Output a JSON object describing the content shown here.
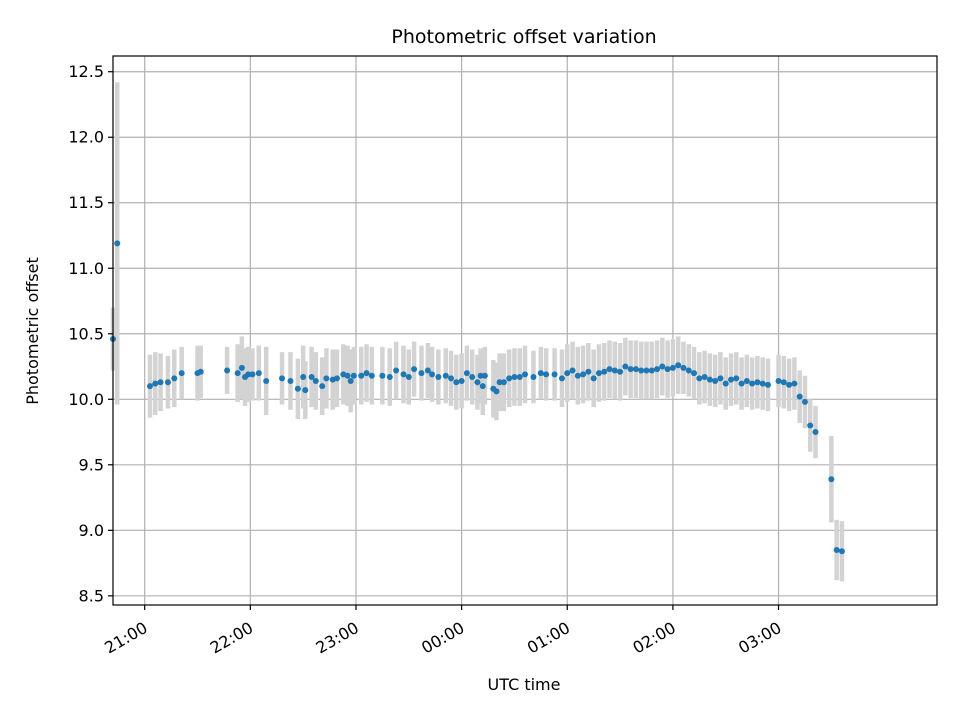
{
  "chart_data": {
    "type": "scatter",
    "title": "Photometric offset variation",
    "xlabel": "UTC time",
    "ylabel": "Photometric offset",
    "x_unit": "hours (UTC, 21:00 = 21.0, after midnight continues as 24+)",
    "xlim": [
      20.7,
      28.5
    ],
    "ylim": [
      8.43,
      12.62
    ],
    "grid": true,
    "colors": {
      "points": "#1f77b4",
      "errorbars": "#d3d3d3",
      "grid": "#b0b0b0"
    },
    "xticks": [
      {
        "value": 21,
        "label": "21:00"
      },
      {
        "value": 22,
        "label": "22:00"
      },
      {
        "value": 23,
        "label": "23:00"
      },
      {
        "value": 24,
        "label": "00:00"
      },
      {
        "value": 25,
        "label": "01:00"
      },
      {
        "value": 26,
        "label": "02:00"
      },
      {
        "value": 27,
        "label": "03:00"
      }
    ],
    "yticks": [
      {
        "value": 8.5,
        "label": "8.5"
      },
      {
        "value": 9.0,
        "label": "9.0"
      },
      {
        "value": 9.5,
        "label": "9.5"
      },
      {
        "value": 10.0,
        "label": "10.0"
      },
      {
        "value": 10.5,
        "label": "10.5"
      },
      {
        "value": 11.0,
        "label": "11.0"
      },
      {
        "value": 11.5,
        "label": "11.5"
      },
      {
        "value": 12.0,
        "label": "12.0"
      },
      {
        "value": 12.5,
        "label": "12.5"
      }
    ],
    "points": [
      [
        20.7,
        10.46,
        0.24
      ],
      [
        20.74,
        11.19,
        1.23
      ],
      [
        21.05,
        10.1,
        0.24
      ],
      [
        21.1,
        10.12,
        0.24
      ],
      [
        21.15,
        10.13,
        0.22
      ],
      [
        21.22,
        10.13,
        0.2
      ],
      [
        21.28,
        10.16,
        0.22
      ],
      [
        21.35,
        10.2,
        0.2
      ],
      [
        21.5,
        10.2,
        0.21
      ],
      [
        21.53,
        10.21,
        0.2
      ],
      [
        21.78,
        10.22,
        0.18
      ],
      [
        21.88,
        10.2,
        0.22
      ],
      [
        21.92,
        10.24,
        0.24
      ],
      [
        21.95,
        10.17,
        0.22
      ],
      [
        21.98,
        10.19,
        0.21
      ],
      [
        22.02,
        10.19,
        0.2
      ],
      [
        22.08,
        10.2,
        0.21
      ],
      [
        22.15,
        10.14,
        0.26
      ],
      [
        22.3,
        10.16,
        0.2
      ],
      [
        22.38,
        10.14,
        0.22
      ],
      [
        22.45,
        10.08,
        0.23
      ],
      [
        22.5,
        10.17,
        0.24
      ],
      [
        22.52,
        10.07,
        0.22
      ],
      [
        22.58,
        10.17,
        0.23
      ],
      [
        22.62,
        10.14,
        0.22
      ],
      [
        22.68,
        10.1,
        0.22
      ],
      [
        22.72,
        10.16,
        0.23
      ],
      [
        22.78,
        10.15,
        0.23
      ],
      [
        22.82,
        10.16,
        0.22
      ],
      [
        22.88,
        10.19,
        0.23
      ],
      [
        22.92,
        10.18,
        0.23
      ],
      [
        22.95,
        10.14,
        0.24
      ],
      [
        22.98,
        10.18,
        0.22
      ],
      [
        23.05,
        10.18,
        0.22
      ],
      [
        23.1,
        10.2,
        0.22
      ],
      [
        23.15,
        10.18,
        0.22
      ],
      [
        23.25,
        10.18,
        0.22
      ],
      [
        23.32,
        10.17,
        0.22
      ],
      [
        23.38,
        10.22,
        0.22
      ],
      [
        23.45,
        10.19,
        0.22
      ],
      [
        23.5,
        10.17,
        0.21
      ],
      [
        23.55,
        10.23,
        0.21
      ],
      [
        23.62,
        10.2,
        0.21
      ],
      [
        23.68,
        10.22,
        0.21
      ],
      [
        23.72,
        10.19,
        0.21
      ],
      [
        23.78,
        10.17,
        0.21
      ],
      [
        23.85,
        10.18,
        0.21
      ],
      [
        23.9,
        10.16,
        0.21
      ],
      [
        23.95,
        10.13,
        0.21
      ],
      [
        24.0,
        10.14,
        0.21
      ],
      [
        24.05,
        10.2,
        0.21
      ],
      [
        24.1,
        10.17,
        0.21
      ],
      [
        24.15,
        10.13,
        0.21
      ],
      [
        24.18,
        10.18,
        0.21
      ],
      [
        24.2,
        10.1,
        0.22
      ],
      [
        24.22,
        10.18,
        0.22
      ],
      [
        24.3,
        10.08,
        0.22
      ],
      [
        24.33,
        10.06,
        0.22
      ],
      [
        24.36,
        10.13,
        0.22
      ],
      [
        24.4,
        10.13,
        0.22
      ],
      [
        24.45,
        10.16,
        0.22
      ],
      [
        24.5,
        10.17,
        0.22
      ],
      [
        24.55,
        10.17,
        0.22
      ],
      [
        24.6,
        10.19,
        0.22
      ],
      [
        24.68,
        10.17,
        0.2
      ],
      [
        24.75,
        10.2,
        0.2
      ],
      [
        24.8,
        10.19,
        0.2
      ],
      [
        24.88,
        10.19,
        0.2
      ],
      [
        24.95,
        10.16,
        0.22
      ],
      [
        25.0,
        10.2,
        0.22
      ],
      [
        25.05,
        10.22,
        0.22
      ],
      [
        25.1,
        10.18,
        0.22
      ],
      [
        25.15,
        10.19,
        0.22
      ],
      [
        25.2,
        10.21,
        0.22
      ],
      [
        25.25,
        10.16,
        0.22
      ],
      [
        25.3,
        10.2,
        0.22
      ],
      [
        25.35,
        10.21,
        0.22
      ],
      [
        25.4,
        10.23,
        0.22
      ],
      [
        25.45,
        10.22,
        0.22
      ],
      [
        25.5,
        10.21,
        0.22
      ],
      [
        25.55,
        10.25,
        0.22
      ],
      [
        25.6,
        10.23,
        0.22
      ],
      [
        25.65,
        10.23,
        0.22
      ],
      [
        25.7,
        10.22,
        0.22
      ],
      [
        25.75,
        10.22,
        0.22
      ],
      [
        25.8,
        10.22,
        0.22
      ],
      [
        25.85,
        10.23,
        0.22
      ],
      [
        25.9,
        10.25,
        0.22
      ],
      [
        25.95,
        10.23,
        0.22
      ],
      [
        26.0,
        10.24,
        0.22
      ],
      [
        26.05,
        10.26,
        0.22
      ],
      [
        26.1,
        10.24,
        0.2
      ],
      [
        26.15,
        10.22,
        0.2
      ],
      [
        26.2,
        10.2,
        0.2
      ],
      [
        26.25,
        10.16,
        0.2
      ],
      [
        26.3,
        10.17,
        0.2
      ],
      [
        26.35,
        10.15,
        0.2
      ],
      [
        26.4,
        10.14,
        0.2
      ],
      [
        26.45,
        10.16,
        0.2
      ],
      [
        26.5,
        10.12,
        0.2
      ],
      [
        26.55,
        10.15,
        0.2
      ],
      [
        26.6,
        10.16,
        0.2
      ],
      [
        26.65,
        10.12,
        0.2
      ],
      [
        26.7,
        10.14,
        0.2
      ],
      [
        26.75,
        10.12,
        0.2
      ],
      [
        26.8,
        10.13,
        0.2
      ],
      [
        26.85,
        10.12,
        0.2
      ],
      [
        26.9,
        10.11,
        0.2
      ],
      [
        27.0,
        10.14,
        0.2
      ],
      [
        27.05,
        10.13,
        0.2
      ],
      [
        27.1,
        10.11,
        0.2
      ],
      [
        27.15,
        10.12,
        0.2
      ],
      [
        27.2,
        10.02,
        0.2
      ],
      [
        27.25,
        9.98,
        0.2
      ],
      [
        27.3,
        9.8,
        0.2
      ],
      [
        27.35,
        9.75,
        0.2
      ],
      [
        27.5,
        9.39,
        0.33
      ],
      [
        27.55,
        8.85,
        0.23
      ],
      [
        27.6,
        8.84,
        0.23
      ]
    ]
  }
}
